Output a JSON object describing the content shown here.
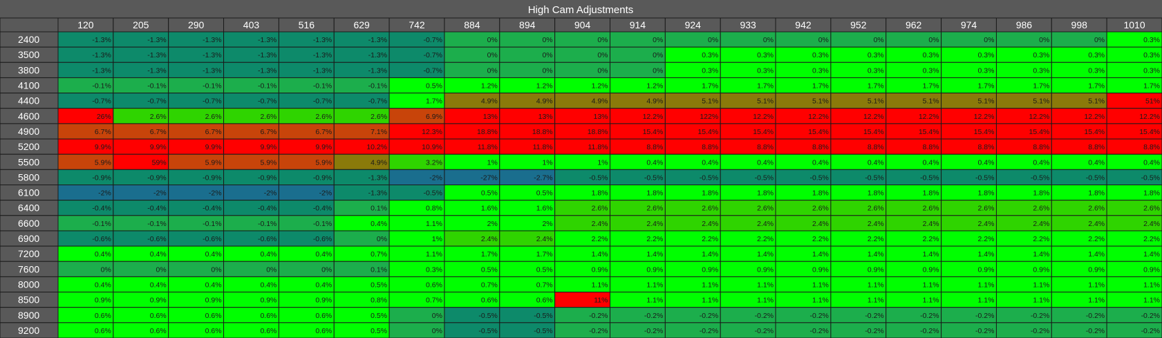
{
  "chart_data": {
    "type": "heatmap",
    "title": "High Cam Adjustments",
    "x": [
      "120",
      "205",
      "290",
      "403",
      "516",
      "629",
      "742",
      "884",
      "894",
      "904",
      "914",
      "924",
      "933",
      "942",
      "952",
      "962",
      "974",
      "986",
      "998",
      "1010"
    ],
    "y": [
      "2400",
      "3500",
      "3800",
      "4100",
      "4400",
      "4600",
      "4900",
      "5200",
      "5500",
      "5800",
      "6100",
      "6400",
      "6600",
      "6900",
      "7200",
      "7600",
      "8000",
      "8500",
      "8900",
      "9200"
    ],
    "labels": [
      [
        "-1.3%",
        "-1.3%",
        "-1.3%",
        "-1.3%",
        "-1.3%",
        "-1.3%",
        "-0.7%",
        "0%",
        "0%",
        "0%",
        "0%",
        "0%",
        "0%",
        "0%",
        "0%",
        "0%",
        "0%",
        "0%",
        "0%",
        "0.3%"
      ],
      [
        "-1.3%",
        "-1.3%",
        "-1.3%",
        "-1.3%",
        "-1.3%",
        "-1.3%",
        "-0.7%",
        "0%",
        "0%",
        "0%",
        "0%",
        "0.3%",
        "0.3%",
        "0.3%",
        "0.3%",
        "0.3%",
        "0.3%",
        "0.3%",
        "0.3%",
        "0.3%"
      ],
      [
        "-1.3%",
        "-1.3%",
        "-1.3%",
        "-1.3%",
        "-1.3%",
        "-1.3%",
        "-0.7%",
        "0%",
        "0%",
        "0%",
        "0%",
        "0.3%",
        "0.3%",
        "0.3%",
        "0.3%",
        "0.3%",
        "0.3%",
        "0.3%",
        "0.3%",
        "0.3%"
      ],
      [
        "-0.1%",
        "-0.1%",
        "-0.1%",
        "-0.1%",
        "-0.1%",
        "-0.1%",
        "0.5%",
        "1.2%",
        "1.2%",
        "1.2%",
        "1.2%",
        "1.7%",
        "1.7%",
        "1.7%",
        "1.7%",
        "1.7%",
        "1.7%",
        "1.7%",
        "1.7%",
        "1.7%"
      ],
      [
        "-0.7%",
        "-0.7%",
        "-0.7%",
        "-0.7%",
        "-0.7%",
        "-0.7%",
        "1.7%",
        "4.9%",
        "4.9%",
        "4.9%",
        "4.9%",
        "5.1%",
        "5.1%",
        "5.1%",
        "5.1%",
        "5.1%",
        "5.1%",
        "5.1%",
        "5.1%",
        "51%"
      ],
      [
        "26%",
        "2.6%",
        "2.6%",
        "2.6%",
        "2.6%",
        "2.6%",
        "6.9%",
        "13%",
        "13%",
        "13%",
        "12.2%",
        "122%",
        "12.2%",
        "12.2%",
        "12.2%",
        "12.2%",
        "12.2%",
        "12.2%",
        "12.2%",
        "12.2%"
      ],
      [
        "6.7%",
        "6.7%",
        "6.7%",
        "6.7%",
        "6.7%",
        "7.1%",
        "12.3%",
        "18.8%",
        "18.8%",
        "18.8%",
        "15.4%",
        "15.4%",
        "15.4%",
        "15.4%",
        "15.4%",
        "15.4%",
        "15.4%",
        "15.4%",
        "15.4%",
        "15.4%"
      ],
      [
        "9.9%",
        "9.9%",
        "9.9%",
        "9.9%",
        "9.9%",
        "10.2%",
        "10.9%",
        "11.8%",
        "11.8%",
        "11.8%",
        "8.8%",
        "8.8%",
        "8.8%",
        "8.8%",
        "8.8%",
        "8.8%",
        "8.8%",
        "8.8%",
        "8.8%",
        "8.8%"
      ],
      [
        "5.9%",
        "59%",
        "5.9%",
        "5.9%",
        "5.9%",
        "4.9%",
        "3.2%",
        "1%",
        "1%",
        "1%",
        "0.4%",
        "0.4%",
        "0.4%",
        "0.4%",
        "0.4%",
        "0.4%",
        "0.4%",
        "0.4%",
        "0.4%",
        "0.4%"
      ],
      [
        "-0.9%",
        "-0.9%",
        "-0.9%",
        "-0.9%",
        "-0.9%",
        "-1.3%",
        "-2%",
        "-27%",
        "-2.7%",
        "-0.5%",
        "-0.5%",
        "-0.5%",
        "-0.5%",
        "-0.5%",
        "-0.5%",
        "-0.5%",
        "-0.5%",
        "-0.5%",
        "-0.5%",
        "-0.5%"
      ],
      [
        "-2%",
        "-2%",
        "-2%",
        "-2%",
        "-2%",
        "-1.3%",
        "-0.5%",
        "0.5%",
        "0.5%",
        "1.8%",
        "1.8%",
        "1.8%",
        "1.8%",
        "1.8%",
        "1.8%",
        "1.8%",
        "1.8%",
        "1.8%",
        "1.8%",
        "1.8%"
      ],
      [
        "-0.4%",
        "-0.4%",
        "-0.4%",
        "-0.4%",
        "-0.4%",
        "0.1%",
        "0.8%",
        "1.6%",
        "1.6%",
        "2.6%",
        "2.6%",
        "2.6%",
        "2.6%",
        "2.6%",
        "2.6%",
        "2.6%",
        "2.6%",
        "2.6%",
        "2.6%",
        "2.6%"
      ],
      [
        "-0.1%",
        "-0.1%",
        "-0.1%",
        "-0.1%",
        "-0.1%",
        "0.4%",
        "1.1%",
        "2%",
        "2%",
        "2.4%",
        "2.4%",
        "2.4%",
        "2.4%",
        "2.4%",
        "2.4%",
        "2.4%",
        "2.4%",
        "2.4%",
        "2.4%",
        "2.4%"
      ],
      [
        "-0.6%",
        "-0.6%",
        "-0.6%",
        "-0.6%",
        "-0.6%",
        "0%",
        "1%",
        "2.4%",
        "2.4%",
        "2.2%",
        "2.2%",
        "2.2%",
        "2.2%",
        "2.2%",
        "2.2%",
        "2.2%",
        "2.2%",
        "2.2%",
        "2.2%",
        "2.2%"
      ],
      [
        "0.4%",
        "0.4%",
        "0.4%",
        "0.4%",
        "0.4%",
        "0.7%",
        "1.1%",
        "1.7%",
        "1.7%",
        "1.4%",
        "1.4%",
        "1.4%",
        "1.4%",
        "1.4%",
        "1.4%",
        "1.4%",
        "1.4%",
        "1.4%",
        "1.4%",
        "1.4%"
      ],
      [
        "0%",
        "0%",
        "0%",
        "0%",
        "0%",
        "0.1%",
        "0.3%",
        "0.5%",
        "0.5%",
        "0.9%",
        "0.9%",
        "0.9%",
        "0.9%",
        "0.9%",
        "0.9%",
        "0.9%",
        "0.9%",
        "0.9%",
        "0.9%",
        "0.9%"
      ],
      [
        "0.4%",
        "0.4%",
        "0.4%",
        "0.4%",
        "0.4%",
        "0.5%",
        "0.6%",
        "0.7%",
        "0.7%",
        "1.1%",
        "1.1%",
        "1.1%",
        "1.1%",
        "1.1%",
        "1.1%",
        "1.1%",
        "1.1%",
        "1.1%",
        "1.1%",
        "1.1%"
      ],
      [
        "0.9%",
        "0.9%",
        "0.9%",
        "0.9%",
        "0.9%",
        "0.8%",
        "0.7%",
        "0.6%",
        "0.6%",
        "11%",
        "1.1%",
        "1.1%",
        "1.1%",
        "1.1%",
        "1.1%",
        "1.1%",
        "1.1%",
        "1.1%",
        "1.1%",
        "1.1%"
      ],
      [
        "0.6%",
        "0.6%",
        "0.6%",
        "0.6%",
        "0.6%",
        "0.5%",
        "0%",
        "-0.5%",
        "-0.5%",
        "-0.2%",
        "-0.2%",
        "-0.2%",
        "-0.2%",
        "-0.2%",
        "-0.2%",
        "-0.2%",
        "-0.2%",
        "-0.2%",
        "-0.2%",
        "-0.2%"
      ],
      [
        "0.6%",
        "0.6%",
        "0.6%",
        "0.6%",
        "0.6%",
        "0.5%",
        "0%",
        "-0.5%",
        "-0.5%",
        "-0.2%",
        "-0.2%",
        "-0.2%",
        "-0.2%",
        "-0.2%",
        "-0.2%",
        "-0.2%",
        "-0.2%",
        "-0.2%",
        "-0.2%",
        "-0.2%"
      ]
    ],
    "colors": {
      "header_bg": "#595959",
      "header_text": "#ffffff",
      "row_label_bg": "#595959",
      "grid_line": "#1a1a1a",
      "cell_text": "#1a1a1a",
      "scale": [
        "#1a6e8e",
        "#0d8a6a",
        "#1cae4c",
        "#00ff00",
        "#2fd400",
        "#8a7a0a",
        "#c8440a",
        "#ff0000"
      ]
    },
    "legend": "none",
    "grid": true
  }
}
